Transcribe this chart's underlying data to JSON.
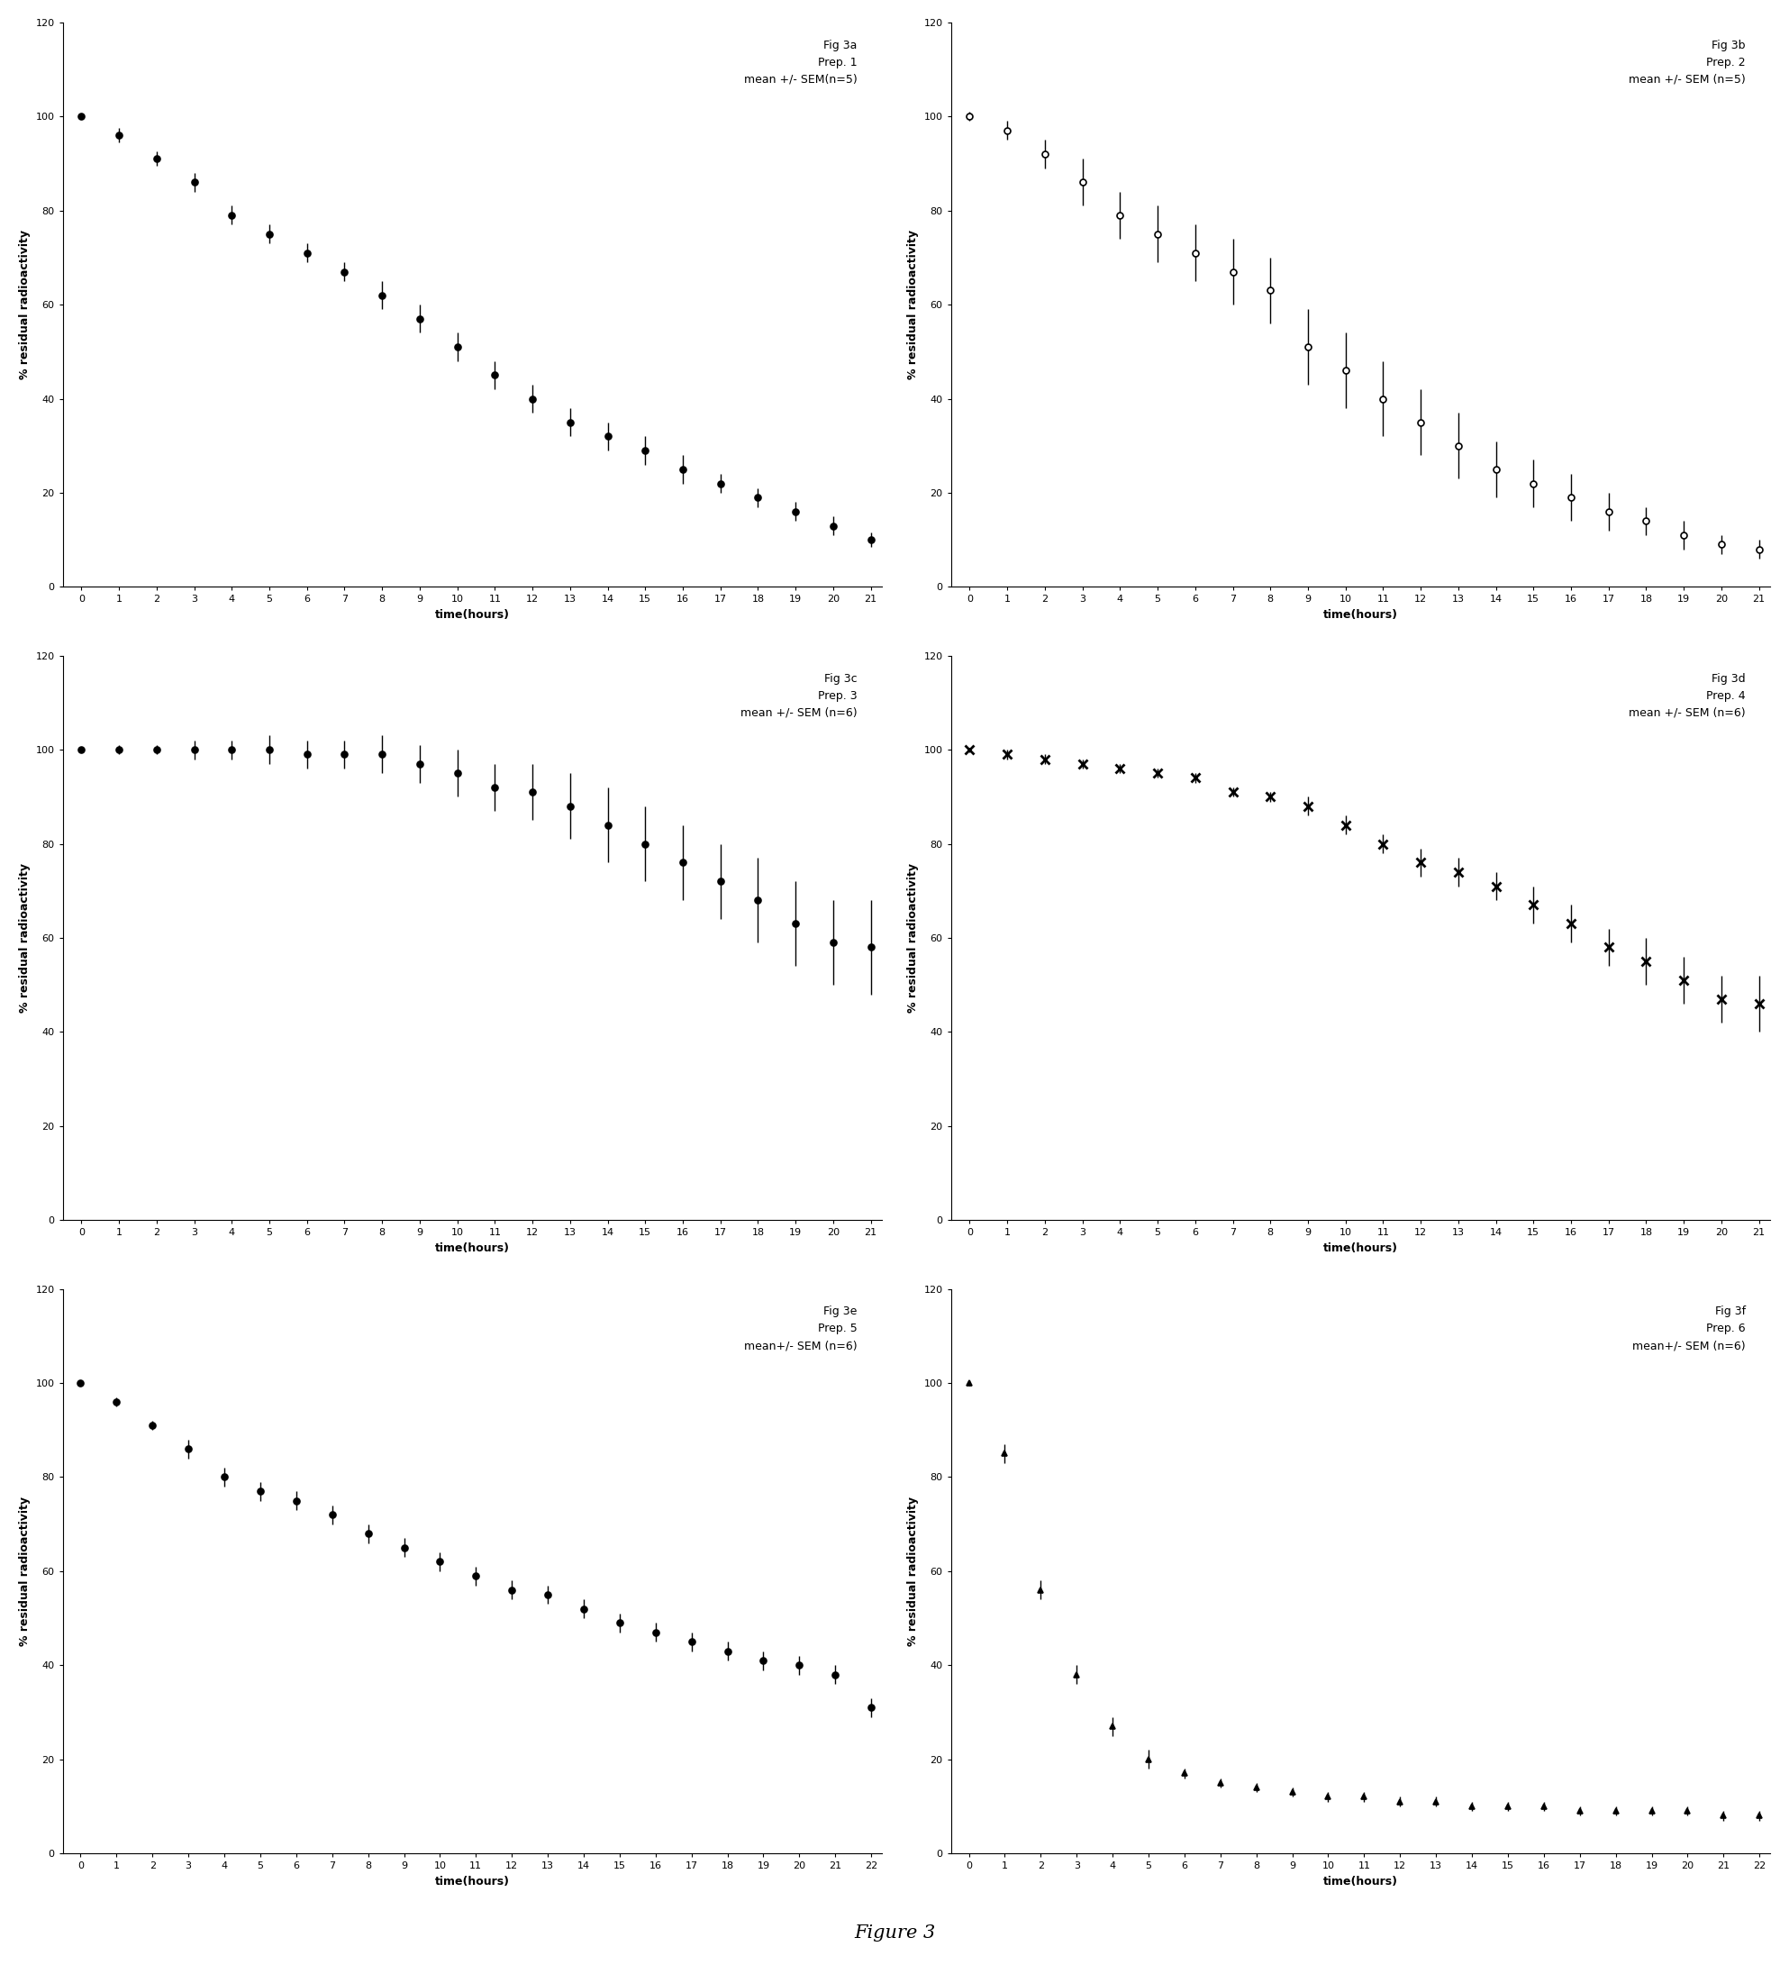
{
  "panels": [
    {
      "label": "Fig 3a\nPrep. 1\nmean +/- SEM(n=5)",
      "marker": "o",
      "filled": true,
      "x": [
        0,
        1,
        2,
        3,
        4,
        5,
        6,
        7,
        8,
        9,
        10,
        11,
        12,
        13,
        14,
        15,
        16,
        17,
        18,
        19,
        20,
        21
      ],
      "y": [
        100,
        96,
        91,
        86,
        79,
        75,
        71,
        67,
        62,
        57,
        51,
        45,
        40,
        35,
        32,
        29,
        25,
        22,
        19,
        16,
        13,
        10
      ],
      "yerr": [
        0,
        1.5,
        1.5,
        2,
        2,
        2,
        2,
        2,
        3,
        3,
        3,
        3,
        3,
        3,
        3,
        3,
        3,
        2,
        2,
        2,
        2,
        1.5
      ],
      "xmax": 21,
      "ymax": 120
    },
    {
      "label": "Fig 3b\nPrep. 2\nmean +/- SEM (n=5)",
      "marker": "o",
      "filled": false,
      "x": [
        0,
        1,
        2,
        3,
        4,
        5,
        6,
        7,
        8,
        9,
        10,
        11,
        12,
        13,
        14,
        15,
        16,
        17,
        18,
        19,
        20,
        21
      ],
      "y": [
        100,
        97,
        92,
        86,
        79,
        75,
        71,
        67,
        63,
        51,
        46,
        40,
        35,
        30,
        25,
        22,
        19,
        16,
        14,
        11,
        9,
        8
      ],
      "yerr": [
        1,
        2,
        3,
        5,
        5,
        6,
        6,
        7,
        7,
        8,
        8,
        8,
        7,
        7,
        6,
        5,
        5,
        4,
        3,
        3,
        2,
        2
      ],
      "xmax": 21,
      "ymax": 120
    },
    {
      "label": "Fig 3c\nPrep. 3\nmean +/- SEM (n=6)",
      "marker": "o",
      "filled": true,
      "x": [
        0,
        1,
        2,
        3,
        4,
        5,
        6,
        7,
        8,
        9,
        10,
        11,
        12,
        13,
        14,
        15,
        16,
        17,
        18,
        19,
        20,
        21
      ],
      "y": [
        100,
        100,
        100,
        100,
        100,
        100,
        99,
        99,
        99,
        97,
        95,
        92,
        91,
        88,
        84,
        80,
        76,
        72,
        68,
        63,
        59,
        58
      ],
      "yerr": [
        0.5,
        1,
        1,
        2,
        2,
        3,
        3,
        3,
        4,
        4,
        5,
        5,
        6,
        7,
        8,
        8,
        8,
        8,
        9,
        9,
        9,
        10
      ],
      "xmax": 21,
      "ymax": 120
    },
    {
      "label": "Fig 3d\nPrep. 4\nmean +/- SEM (n=6)",
      "marker": "x",
      "filled": true,
      "x": [
        0,
        1,
        2,
        3,
        4,
        5,
        6,
        7,
        8,
        9,
        10,
        11,
        12,
        13,
        14,
        15,
        16,
        17,
        18,
        19,
        20,
        21
      ],
      "y": [
        100,
        99,
        98,
        97,
        96,
        95,
        94,
        91,
        90,
        88,
        84,
        80,
        76,
        74,
        71,
        67,
        63,
        58,
        55,
        51,
        47,
        46
      ],
      "yerr": [
        0.5,
        1,
        1,
        1,
        1,
        1,
        1,
        1,
        1,
        2,
        2,
        2,
        3,
        3,
        3,
        4,
        4,
        4,
        5,
        5,
        5,
        6
      ],
      "xmax": 21,
      "ymax": 120
    },
    {
      "label": "Fig 3e\nPrep. 5\nmean+/- SEM (n=6)",
      "marker": "o",
      "filled": true,
      "x": [
        0,
        1,
        2,
        3,
        4,
        5,
        6,
        7,
        8,
        9,
        10,
        11,
        12,
        13,
        14,
        15,
        16,
        17,
        18,
        19,
        20,
        21,
        22
      ],
      "y": [
        100,
        96,
        91,
        86,
        80,
        77,
        75,
        72,
        68,
        65,
        62,
        59,
        56,
        55,
        52,
        49,
        47,
        45,
        43,
        41,
        40,
        38,
        31
      ],
      "yerr": [
        0.5,
        1,
        1,
        2,
        2,
        2,
        2,
        2,
        2,
        2,
        2,
        2,
        2,
        2,
        2,
        2,
        2,
        2,
        2,
        2,
        2,
        2,
        2
      ],
      "xmax": 22,
      "ymax": 120
    },
    {
      "label": "Fig 3f\nPrep. 6\nmean+/- SEM (n=6)",
      "marker": "^",
      "filled": true,
      "x": [
        0,
        1,
        2,
        3,
        4,
        5,
        6,
        7,
        8,
        9,
        10,
        11,
        12,
        13,
        14,
        15,
        16,
        17,
        18,
        19,
        20,
        21,
        22
      ],
      "y": [
        100,
        85,
        56,
        38,
        27,
        20,
        17,
        15,
        14,
        13,
        12,
        12,
        11,
        11,
        10,
        10,
        10,
        9,
        9,
        9,
        9,
        8,
        8
      ],
      "yerr": [
        0.5,
        2,
        2,
        2,
        2,
        2,
        1,
        1,
        1,
        1,
        1,
        1,
        1,
        1,
        1,
        1,
        1,
        1,
        1,
        1,
        1,
        1,
        1
      ],
      "xmax": 22,
      "ymax": 120
    }
  ],
  "ylabel": "% residual radioactivity",
  "xlabel": "time(hours)",
  "figure_label": "Figure 3",
  "background_color": "white"
}
